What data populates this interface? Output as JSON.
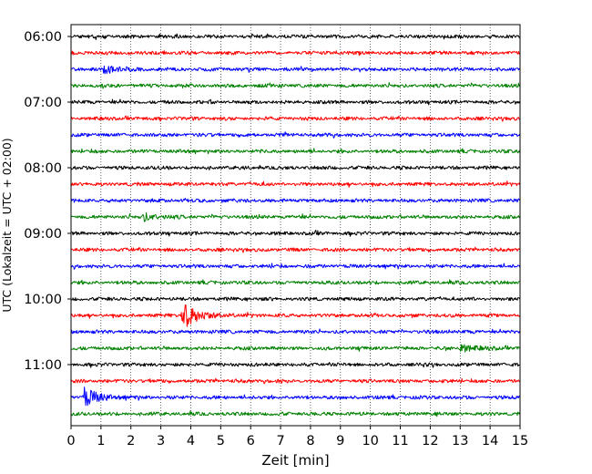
{
  "chart_data": {
    "type": "line",
    "title": "",
    "xlabel": "Zeit  [min]",
    "ylabel": "UTC (Lokalzeit = UTC + 02:00)",
    "xlim": [
      0,
      15
    ],
    "x_ticks": [
      0,
      1,
      2,
      3,
      4,
      5,
      6,
      7,
      8,
      9,
      10,
      11,
      12,
      13,
      14,
      15
    ],
    "y_tick_labels": [
      "06:00",
      "07:00",
      "08:00",
      "09:00",
      "10:00",
      "11:00"
    ],
    "grid": {
      "vertical": true,
      "style": "dotted"
    },
    "trace_colors": [
      "#000000",
      "#ff0000",
      "#0000ff",
      "#008000"
    ],
    "traces": [
      {
        "start": "06:00",
        "events": []
      },
      {
        "start": "06:15",
        "events": []
      },
      {
        "start": "06:30",
        "events": [
          {
            "minute": 1.1,
            "amplitude": 5
          }
        ]
      },
      {
        "start": "06:45",
        "events": []
      },
      {
        "start": "07:00",
        "events": []
      },
      {
        "start": "07:15",
        "events": []
      },
      {
        "start": "07:30",
        "events": []
      },
      {
        "start": "07:45",
        "events": []
      },
      {
        "start": "08:00",
        "events": []
      },
      {
        "start": "08:15",
        "events": []
      },
      {
        "start": "08:30",
        "events": []
      },
      {
        "start": "08:45",
        "events": [
          {
            "minute": 2.4,
            "amplitude": 4
          }
        ]
      },
      {
        "start": "09:00",
        "events": []
      },
      {
        "start": "09:15",
        "events": []
      },
      {
        "start": "09:30",
        "events": []
      },
      {
        "start": "09:45",
        "events": []
      },
      {
        "start": "10:00",
        "events": []
      },
      {
        "start": "10:15",
        "events": [
          {
            "minute": 3.7,
            "amplitude": 16
          }
        ]
      },
      {
        "start": "10:30",
        "events": []
      },
      {
        "start": "10:45",
        "events": [
          {
            "minute": 13.0,
            "amplitude": 4
          }
        ]
      },
      {
        "start": "11:00",
        "events": []
      },
      {
        "start": "11:15",
        "events": []
      },
      {
        "start": "11:30",
        "events": [
          {
            "minute": 0.4,
            "amplitude": 11
          }
        ]
      },
      {
        "start": "11:45",
        "events": []
      }
    ]
  }
}
